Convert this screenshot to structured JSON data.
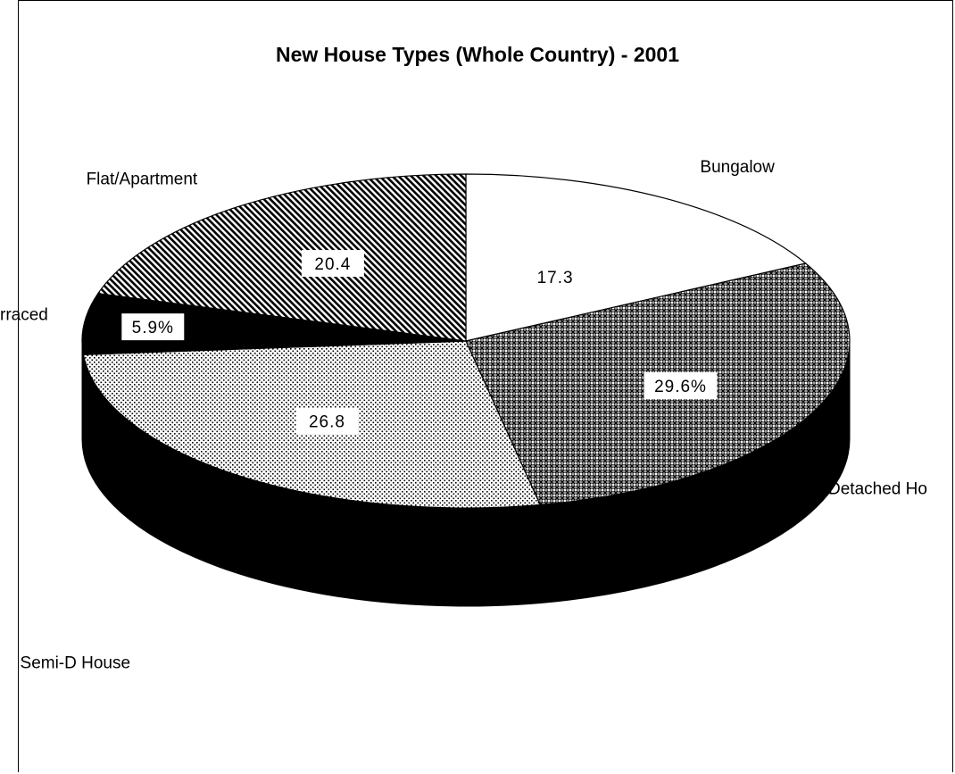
{
  "chart_data": {
    "type": "pie",
    "title": "New House Types (Whole Country) - 2001",
    "categories": [
      "Bungalow",
      "Detached Ho",
      "Semi-D House",
      "rraced",
      "Flat/Apartment"
    ],
    "values": [
      17.3,
      29.6,
      26.8,
      5.9,
      20.4
    ],
    "data_labels": [
      "17.3",
      "29.6%",
      "26.8",
      "5.9%",
      "20.4"
    ],
    "style": "3d-pie",
    "fills": [
      "white",
      "cross-hatch",
      "dots",
      "black",
      "diagonal-stripes"
    ],
    "colors": {
      "ink": "#000000",
      "background": "#ffffff"
    }
  }
}
